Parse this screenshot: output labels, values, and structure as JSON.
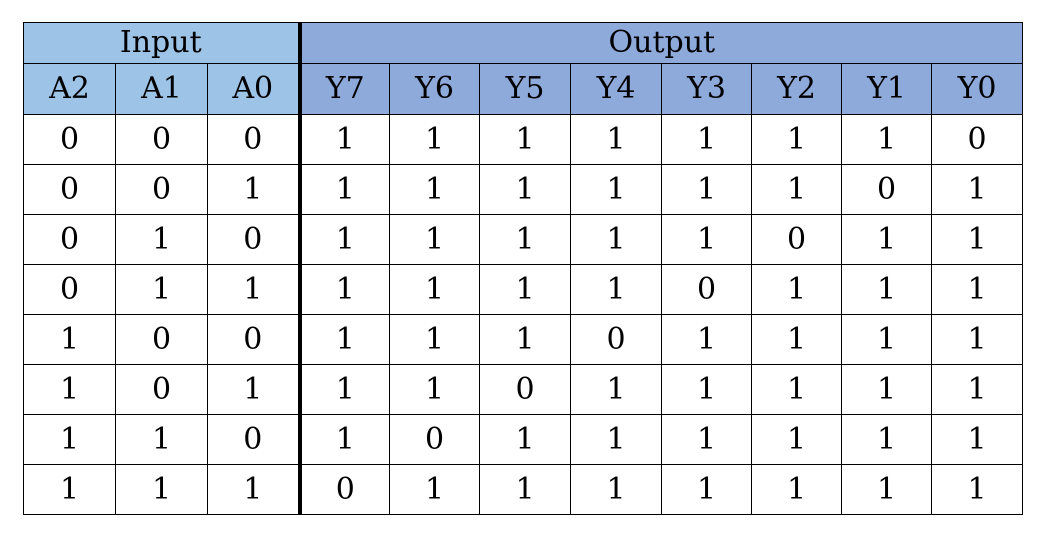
{
  "table": {
    "groups": {
      "input": "Input",
      "output": "Output"
    },
    "input_columns": [
      "A2",
      "A1",
      "A0"
    ],
    "output_columns": [
      "Y7",
      "Y6",
      "Y5",
      "Y4",
      "Y3",
      "Y2",
      "Y1",
      "Y0"
    ],
    "rows": [
      [
        "0",
        "0",
        "0",
        "1",
        "1",
        "1",
        "1",
        "1",
        "1",
        "1",
        "0"
      ],
      [
        "0",
        "0",
        "1",
        "1",
        "1",
        "1",
        "1",
        "1",
        "1",
        "0",
        "1"
      ],
      [
        "0",
        "1",
        "0",
        "1",
        "1",
        "1",
        "1",
        "1",
        "0",
        "1",
        "1"
      ],
      [
        "0",
        "1",
        "1",
        "1",
        "1",
        "1",
        "1",
        "0",
        "1",
        "1",
        "1"
      ],
      [
        "1",
        "0",
        "0",
        "1",
        "1",
        "1",
        "0",
        "1",
        "1",
        "1",
        "1"
      ],
      [
        "1",
        "0",
        "1",
        "1",
        "1",
        "0",
        "1",
        "1",
        "1",
        "1",
        "1"
      ],
      [
        "1",
        "1",
        "0",
        "1",
        "0",
        "1",
        "1",
        "1",
        "1",
        "1",
        "1"
      ],
      [
        "1",
        "1",
        "1",
        "0",
        "1",
        "1",
        "1",
        "1",
        "1",
        "1",
        "1"
      ]
    ],
    "colors": {
      "input_header": "#9dc3e6",
      "output_header": "#8eaadb"
    }
  }
}
